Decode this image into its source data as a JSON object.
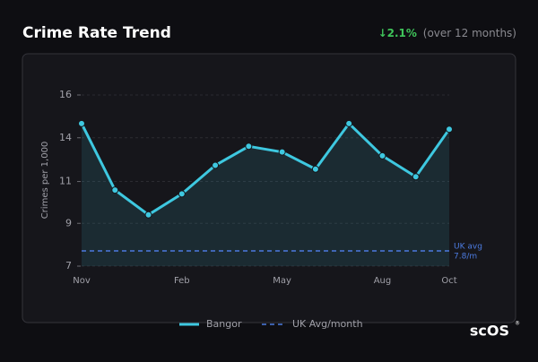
{
  "chart_data": {
    "type": "line",
    "title": "Crime Rate Trend",
    "change": "↓2.1%",
    "change_note": "(over 12 months)",
    "y_label": "Crimes per 1,000",
    "categories": [
      "Nov",
      null,
      null,
      "Feb",
      null,
      null,
      "May",
      null,
      null,
      "Aug",
      null,
      "Oct"
    ],
    "series": [
      {
        "name": "Bangor",
        "color": "#3ec8e0",
        "values": [
          14.5,
          11.0,
          9.7,
          10.8,
          12.3,
          13.3,
          13.0,
          12.1,
          14.5,
          12.8,
          11.7,
          14.2
        ]
      }
    ],
    "reference": {
      "name": "UK Avg/month",
      "value": 7.8,
      "color": "#4c7be0",
      "label_lines": [
        "UK avg",
        "7.8/m"
      ]
    },
    "ylim": [
      7,
      16
    ],
    "yticks": [
      7,
      {
        "value": 9.25,
        "label": "9"
      },
      {
        "value": 11.45,
        "label": "11"
      },
      {
        "value": 13.75,
        "label": "14"
      },
      16
    ],
    "grid": true,
    "logo": "scOS"
  }
}
